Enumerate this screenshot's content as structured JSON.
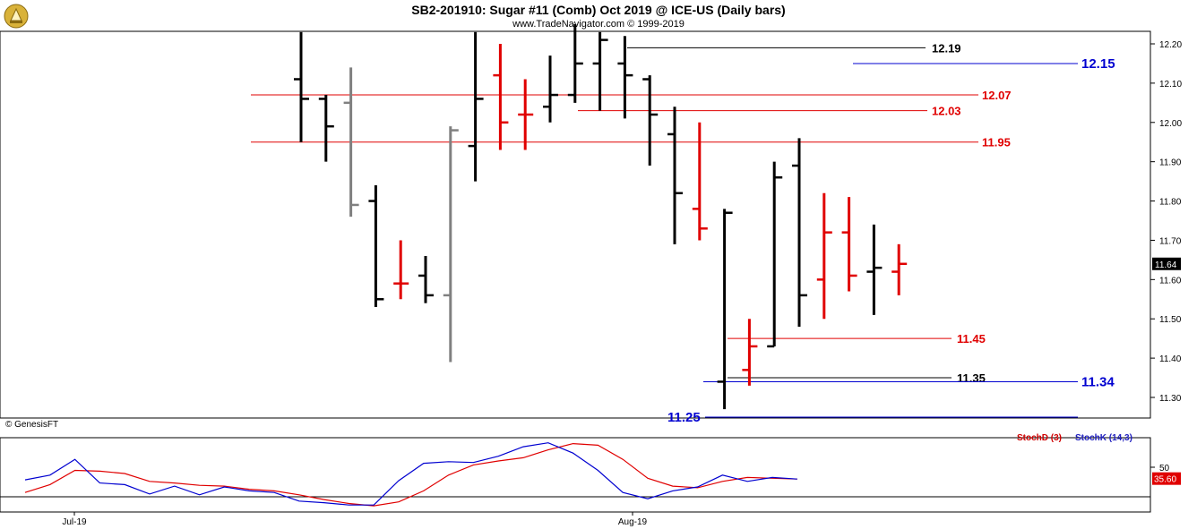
{
  "title": "SB2-201910:  Sugar #11 (Comb) Oct 2019 @ ICE-US  (Daily bars)",
  "subtitle": "www.TradeNavigator.com © 1999-2019",
  "copyright": "© GenesisFT",
  "colors": {
    "up": "#000000",
    "down": "#e00000",
    "neutral": "#808080",
    "level_red": "#e00000",
    "level_blue": "#0000d0"
  },
  "chart_data": [
    {
      "type": "ohlc",
      "ylim": [
        11.22,
        12.25
      ],
      "y_ticks": [
        "12.20",
        "12.10",
        "12.00",
        "11.90",
        "11.80",
        "11.70",
        "11.60",
        "11.50",
        "11.40",
        "11.30"
      ],
      "x_ticks": [
        "Jul-19",
        "Aug-19"
      ],
      "last_price": "11.64",
      "bars": [
        {
          "o": 12.11,
          "h": 12.23,
          "l": 11.95,
          "c": 12.06,
          "color": "black"
        },
        {
          "o": 12.06,
          "h": 12.07,
          "l": 11.9,
          "c": 11.99,
          "color": "black"
        },
        {
          "o": 12.05,
          "h": 12.14,
          "l": 11.76,
          "c": 11.79,
          "color": "gray"
        },
        {
          "o": 11.8,
          "h": 11.84,
          "l": 11.53,
          "c": 11.55,
          "color": "black"
        },
        {
          "o": 11.59,
          "h": 11.7,
          "l": 11.55,
          "c": 11.59,
          "color": "red"
        },
        {
          "o": 11.61,
          "h": 11.66,
          "l": 11.54,
          "c": 11.56,
          "color": "black"
        },
        {
          "o": 11.56,
          "h": 11.99,
          "l": 11.39,
          "c": 11.98,
          "color": "gray"
        },
        {
          "o": 11.94,
          "h": 12.23,
          "l": 11.85,
          "c": 12.06,
          "color": "black"
        },
        {
          "o": 12.12,
          "h": 12.2,
          "l": 11.93,
          "c": 12.0,
          "color": "red"
        },
        {
          "o": 12.02,
          "h": 12.11,
          "l": 11.93,
          "c": 12.02,
          "color": "red"
        },
        {
          "o": 12.04,
          "h": 12.17,
          "l": 12.0,
          "c": 12.07,
          "color": "black"
        },
        {
          "o": 12.07,
          "h": 12.25,
          "l": 12.05,
          "c": 12.15,
          "color": "black"
        },
        {
          "o": 12.15,
          "h": 12.23,
          "l": 12.03,
          "c": 12.21,
          "color": "black"
        },
        {
          "o": 12.15,
          "h": 12.22,
          "l": 12.01,
          "c": 12.12,
          "color": "black"
        },
        {
          "o": 12.11,
          "h": 12.12,
          "l": 11.89,
          "c": 12.02,
          "color": "black"
        },
        {
          "o": 11.97,
          "h": 12.04,
          "l": 11.69,
          "c": 11.82,
          "color": "black"
        },
        {
          "o": 11.78,
          "h": 12.0,
          "l": 11.7,
          "c": 11.73,
          "color": "red"
        },
        {
          "o": 11.34,
          "h": 11.78,
          "l": 11.27,
          "c": 11.77,
          "color": "black"
        },
        {
          "o": 11.37,
          "h": 11.5,
          "l": 11.33,
          "c": 11.43,
          "color": "red"
        },
        {
          "o": 11.43,
          "h": 11.9,
          "l": 11.43,
          "c": 11.86,
          "color": "black"
        },
        {
          "o": 11.89,
          "h": 11.96,
          "l": 11.48,
          "c": 11.56,
          "color": "black"
        },
        {
          "o": 11.6,
          "h": 11.82,
          "l": 11.5,
          "c": 11.72,
          "color": "red"
        },
        {
          "o": 11.72,
          "h": 11.81,
          "l": 11.57,
          "c": 11.61,
          "color": "red"
        },
        {
          "o": 11.62,
          "h": 11.74,
          "l": 11.51,
          "c": 11.63,
          "color": "black"
        },
        {
          "o": 11.62,
          "h": 11.69,
          "l": 11.56,
          "c": 11.64,
          "color": "red"
        }
      ],
      "levels": [
        {
          "value": 12.19,
          "label": "12.19",
          "color": "black"
        },
        {
          "value": 12.15,
          "label": "12.15",
          "color": "blue"
        },
        {
          "value": 12.07,
          "label": "12.07",
          "color": "red"
        },
        {
          "value": 12.03,
          "label": "12.03",
          "color": "red"
        },
        {
          "value": 11.95,
          "label": "11.95",
          "color": "red"
        },
        {
          "value": 11.45,
          "label": "11.45",
          "color": "red"
        },
        {
          "value": 11.35,
          "label": "11.35",
          "color": "black"
        },
        {
          "value": 11.34,
          "label": "11.34",
          "color": "blue"
        },
        {
          "value": 11.25,
          "label": "11.25",
          "color": "blue"
        }
      ]
    },
    {
      "type": "line",
      "ylim": [
        0,
        100
      ],
      "y_ticks": [
        "50"
      ],
      "last_value": "35.60",
      "series": [
        {
          "name": "StochD (3)",
          "color": "red",
          "values": [
            18,
            28,
            46,
            45,
            42,
            32,
            30,
            27,
            26,
            22,
            20,
            15,
            9,
            4,
            1,
            6,
            20,
            40,
            53,
            58,
            62,
            72,
            80,
            78,
            60,
            36,
            26,
            24,
            32,
            37,
            36,
            35
          ]
        },
        {
          "name": "StochK (14,3)",
          "color": "blue",
          "values": [
            34,
            40,
            60,
            30,
            28,
            16,
            26,
            15,
            25,
            20,
            18,
            7,
            5,
            2,
            2,
            33,
            55,
            57,
            56,
            64,
            76,
            81,
            68,
            46,
            18,
            10,
            20,
            25,
            40,
            32,
            37,
            35
          ]
        }
      ]
    }
  ]
}
